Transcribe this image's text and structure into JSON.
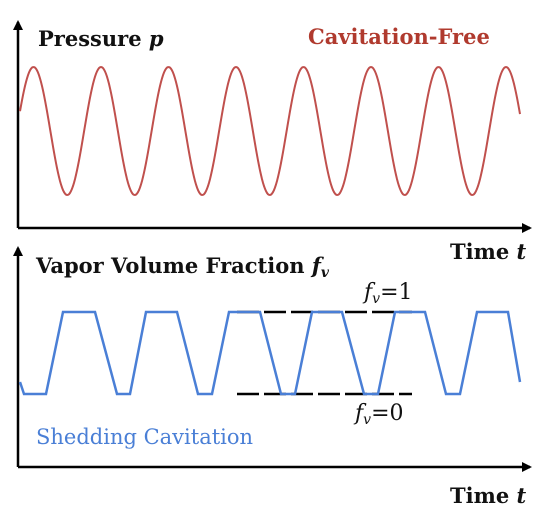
{
  "top_panel": {
    "y_label_text": "Pressure ",
    "y_label_var": "p",
    "title": "Cavitation-Free",
    "x_label_text": "Time ",
    "x_label_var": "t",
    "curve_color": "#c0504d"
  },
  "bottom_panel": {
    "y_label_text": "Vapor Volume Fraction ",
    "y_label_var": "f",
    "y_label_sub": "v",
    "title": "Shedding Cavitation",
    "x_label_text": "Time ",
    "x_label_var": "t",
    "curve_color": "#4a7fd6",
    "level_high_var": "f",
    "level_high_sub": "v",
    "level_high_value": "=1",
    "level_low_var": "f",
    "level_low_sub": "v",
    "level_low_value": "=0"
  },
  "colors": {
    "axis": "#000000",
    "pressure_curve": "#c0504d",
    "shedding_curve": "#4a7fd6",
    "shedding_label": "#4a7fd6",
    "cavitation_free_label": "#b03a2e"
  }
}
